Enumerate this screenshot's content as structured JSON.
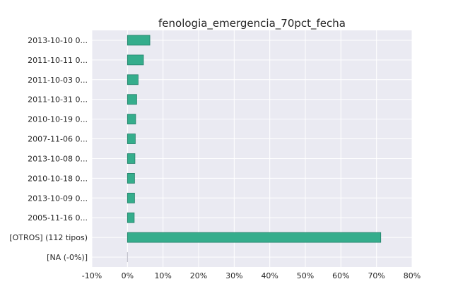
{
  "chart_data": {
    "type": "bar",
    "orientation": "horizontal",
    "title": "fenologia_emergencia_70pct_fecha",
    "xlabel": "",
    "ylabel": "",
    "xlim": [
      -10,
      80
    ],
    "x_ticks": [
      -10,
      0,
      10,
      20,
      30,
      40,
      50,
      60,
      70,
      80
    ],
    "x_tick_labels": [
      "-10%",
      "0%",
      "10%",
      "20%",
      "30%",
      "40%",
      "50%",
      "60%",
      "70%",
      "80%"
    ],
    "categories": [
      "2013-10-10 0...",
      "2011-10-11 0...",
      "2011-10-03 0...",
      "2011-10-31 0...",
      "2010-10-19 0...",
      "2007-11-06 0...",
      "2013-10-08 0...",
      "2010-10-18 0...",
      "2013-10-09 0...",
      "2005-11-16 0...",
      "[OTROS] (112 tipos)",
      "[NA (-0%)]"
    ],
    "values": [
      6.3,
      4.5,
      3.0,
      2.6,
      2.3,
      2.2,
      2.1,
      2.0,
      2.0,
      1.9,
      71.2,
      0.0
    ],
    "grid": true,
    "legend": "none",
    "colors": {
      "bar_fill": "#35ad8c",
      "bar_edge": "#23806a",
      "plot_bg": "#eaeaf2",
      "grid": "#ffffff",
      "text": "#262626"
    }
  }
}
